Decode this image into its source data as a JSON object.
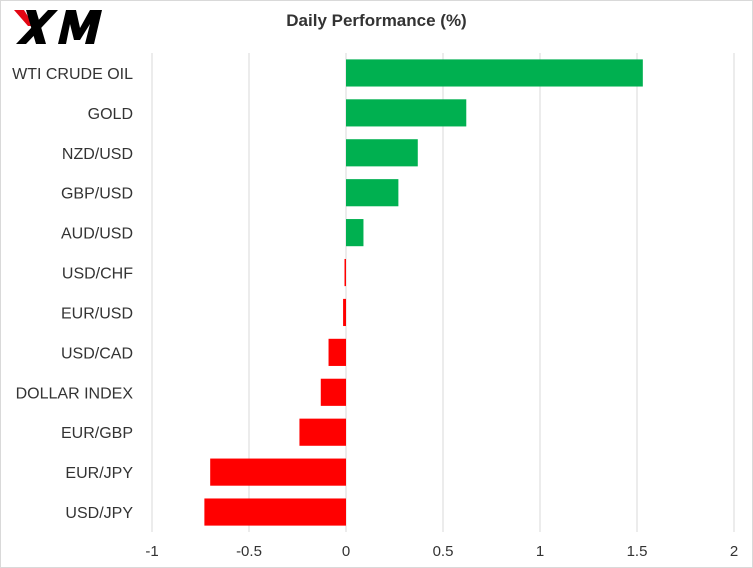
{
  "brand": {
    "logo_text": "XM",
    "logo_color": "#000000",
    "accent_color": "#e30613"
  },
  "chart_data": {
    "type": "bar",
    "orientation": "horizontal",
    "title": "Daily Performance  (%)",
    "xlabel": "",
    "ylabel": "",
    "categories": [
      "WTI CRUDE OIL",
      "GOLD",
      "NZD/USD",
      "GBP/USD",
      "AUD/USD",
      "USD/CHF",
      "EUR/USD",
      "USD/CAD",
      "DOLLAR INDEX",
      "EUR/GBP",
      "EUR/JPY",
      "USD/JPY"
    ],
    "values": [
      1.53,
      0.62,
      0.37,
      0.27,
      0.09,
      -0.005,
      -0.015,
      -0.09,
      -0.13,
      -0.24,
      -0.7,
      -0.73
    ],
    "xlim": [
      -1,
      2
    ],
    "xticks": [
      -1,
      -0.5,
      0,
      0.5,
      1,
      1.5,
      2
    ],
    "xtick_labels": [
      "-1",
      "-0.5",
      "0",
      "0.5",
      "1",
      "1.5",
      "2"
    ],
    "grid": true,
    "legend": "none",
    "positive_color": "#00b050",
    "negative_color": "#ff0000"
  }
}
